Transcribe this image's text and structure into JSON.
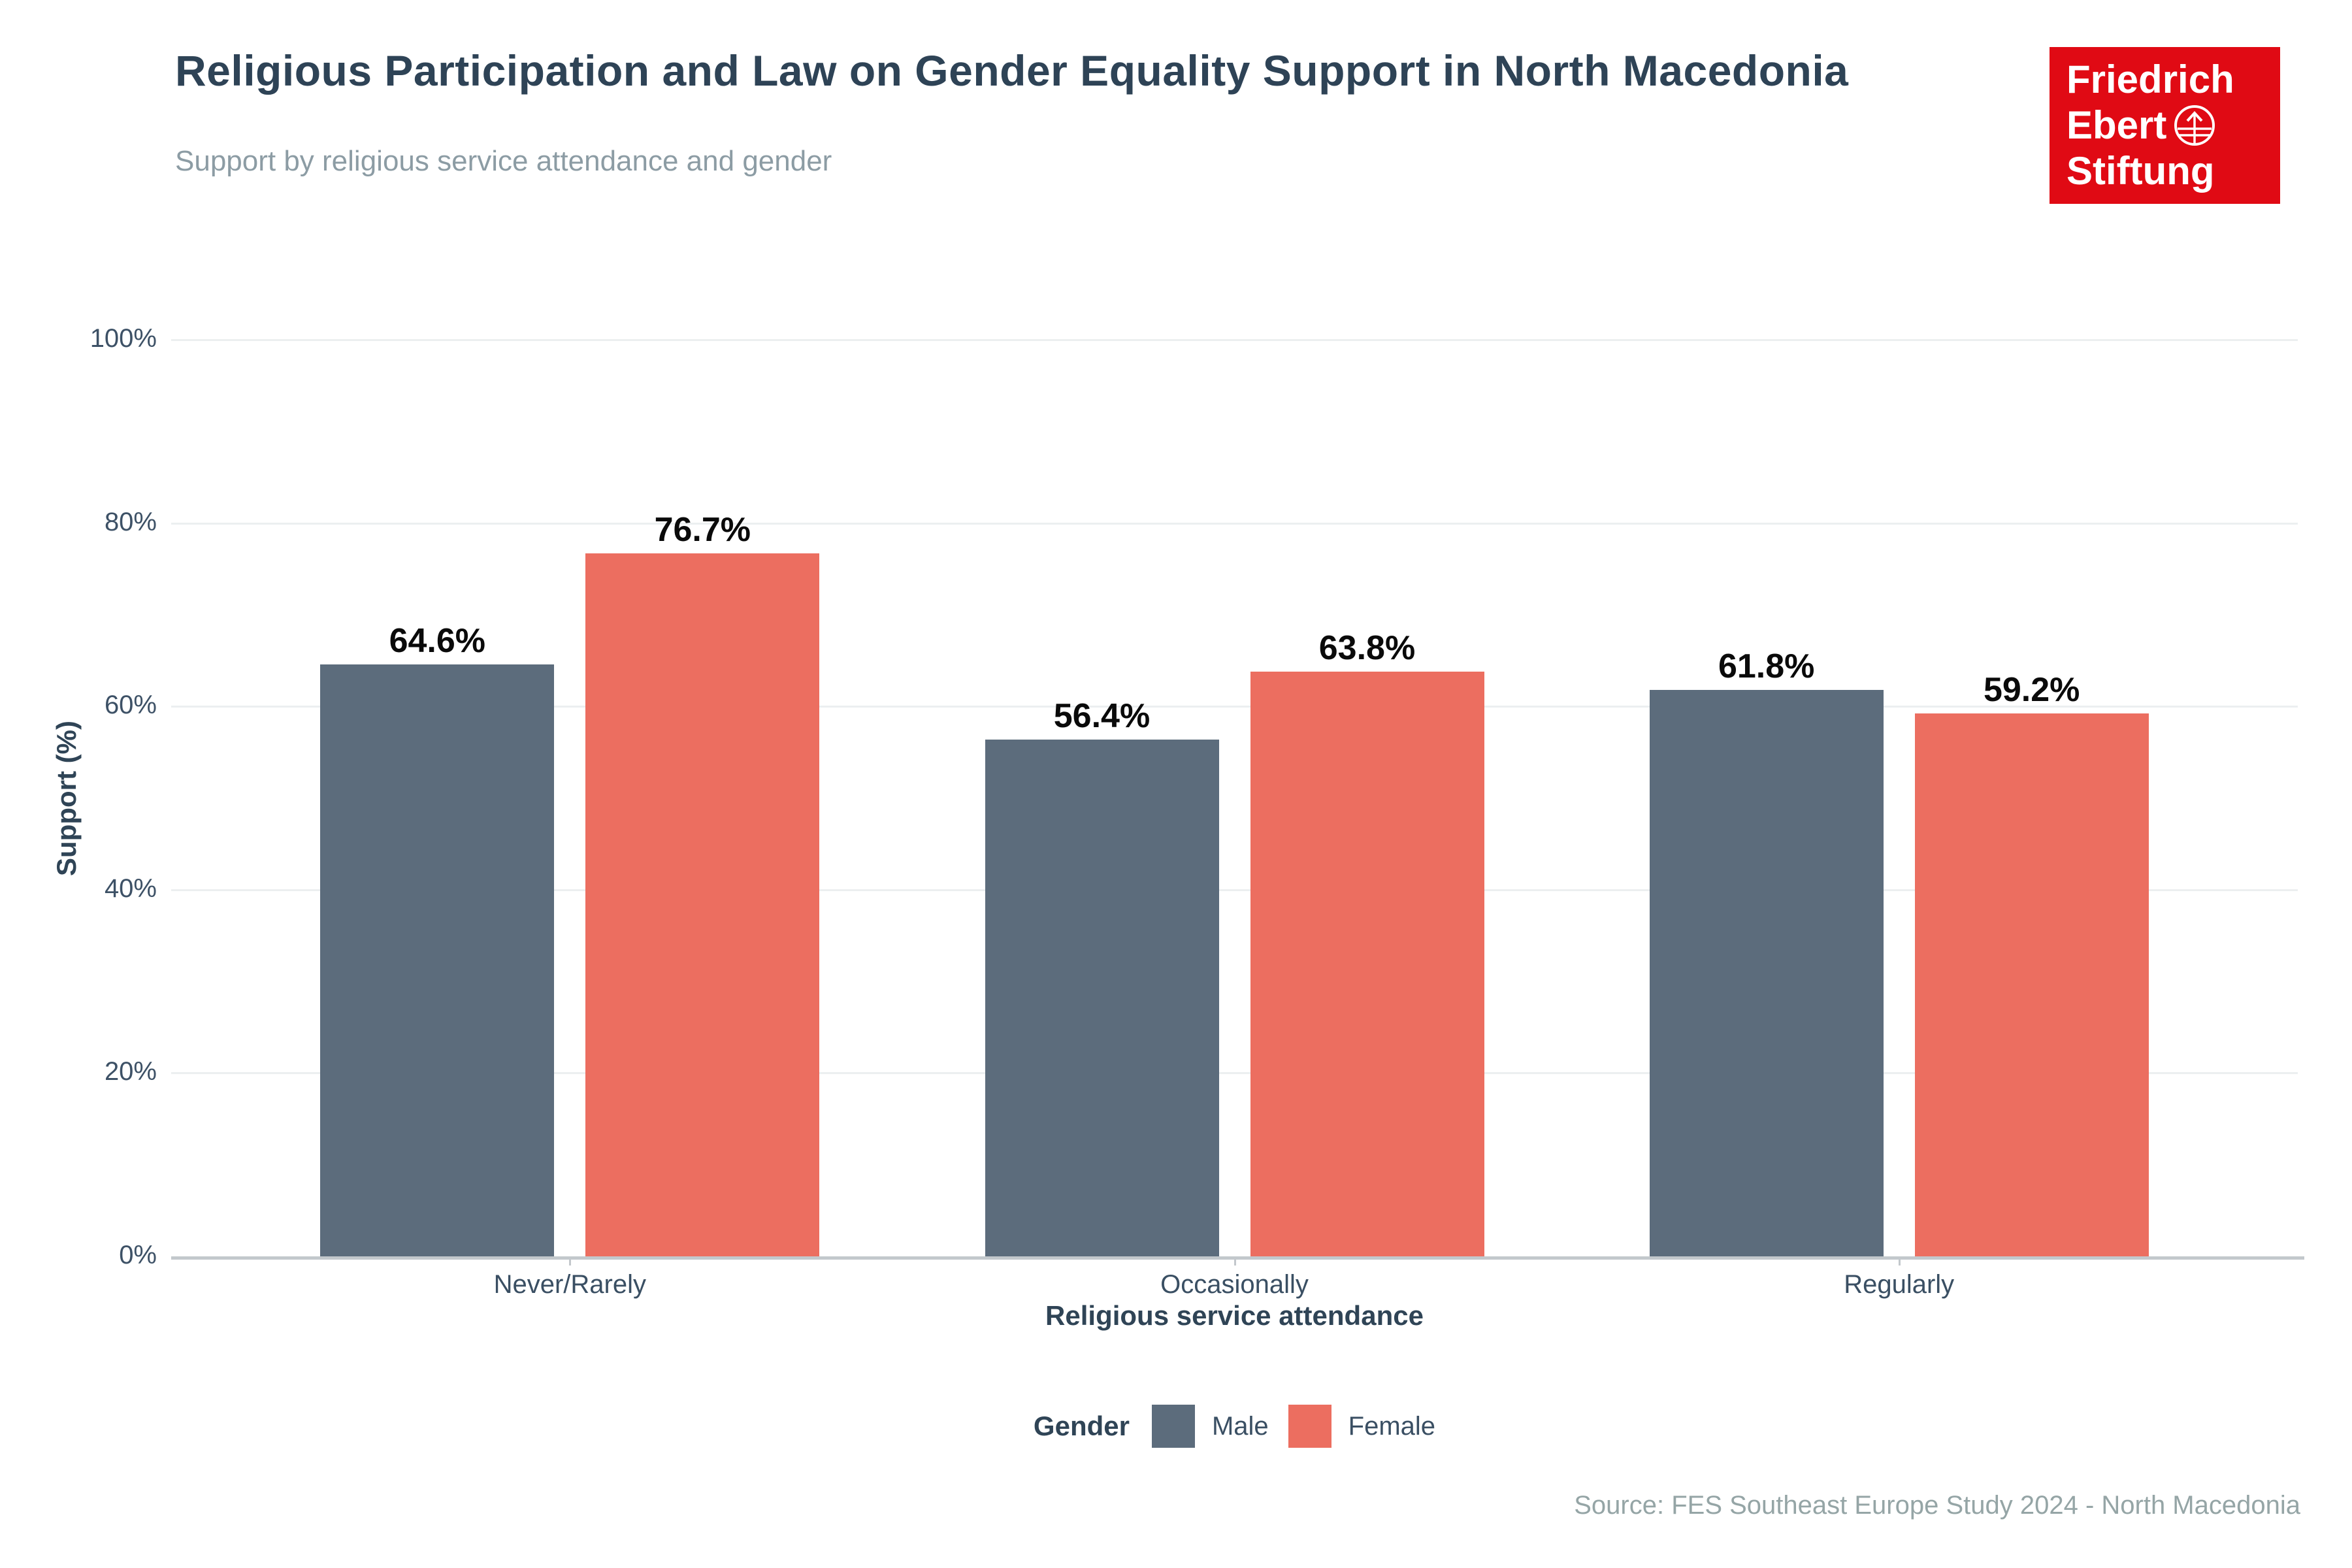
{
  "header": {
    "title": "Religious Participation and Law on Gender Equality Support in North Macedonia",
    "subtitle": "Support by religious service attendance and gender",
    "logo": {
      "line1": "Friedrich",
      "line2": "Ebert",
      "line3": "Stiftung",
      "background_color": "#E00A14",
      "globe_icon": "globe-arrow-icon"
    }
  },
  "chart_data": {
    "type": "bar",
    "title": "Religious Participation and Law on Gender Equality Support in North Macedonia",
    "subtitle": "Support by religious service attendance and gender",
    "categories": [
      "Never/Rarely",
      "Occasionally",
      "Regularly"
    ],
    "series": [
      {
        "name": "Male",
        "color": "#5C6C7C",
        "values": [
          64.6,
          56.4,
          61.8
        ]
      },
      {
        "name": "Female",
        "color": "#EC6E60",
        "values": [
          76.7,
          63.8,
          59.2
        ]
      }
    ],
    "data_labels": [
      [
        "64.6%",
        "56.4%",
        "61.8%"
      ],
      [
        "76.7%",
        "63.8%",
        "59.2%"
      ]
    ],
    "xlabel": "Religious service attendance",
    "ylabel": "Support (%)",
    "ylim": [
      0,
      100
    ],
    "yticks": [
      0,
      20,
      40,
      60,
      80,
      100
    ],
    "ytick_labels": [
      "0%",
      "20%",
      "40%",
      "60%",
      "80%",
      "100%"
    ],
    "grid": true,
    "legend_title": "Gender",
    "legend_position": "bottom",
    "gridline_color": "#ECEFF0",
    "axis_line_color": "#C3C8CC",
    "label_color": "#0a0a0a",
    "tick_text_color": "#3A4F63"
  },
  "source": "Source: FES Southeast Europe Study 2024 - North Macedonia"
}
